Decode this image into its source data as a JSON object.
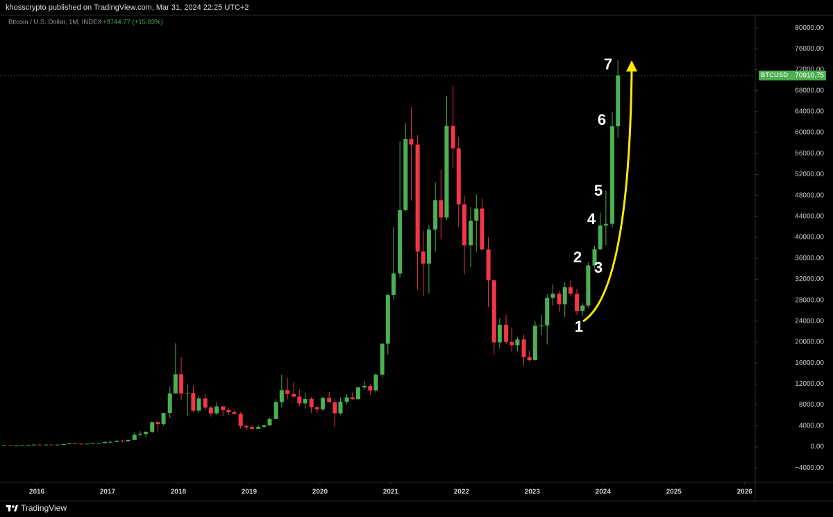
{
  "header": {
    "text": "khosscrypto published on TradingView.com, Mar 31, 2024 22:25 UTC+2"
  },
  "footer": {
    "brand": "TradingView"
  },
  "chart_data": {
    "type": "candlestick",
    "title": "Bitcoin / U.S. Dollar, 1M, INDEX",
    "change_label": "+9744.77 (+15.93%)",
    "symbol": "BTCUSD",
    "up_color": "#4caf50",
    "down_color": "#f23645",
    "annotations": [
      "1",
      "2",
      "3",
      "4",
      "5",
      "6",
      "7"
    ],
    "xlim": [
      2015.48,
      2026.15
    ],
    "xticks": [
      2016,
      2017,
      2018,
      2019,
      2020,
      2021,
      2022,
      2023,
      2024,
      2025,
      2026
    ],
    "ylim": [
      -6760,
      82400
    ],
    "yticks": [
      {
        "value": -4000,
        "label": "−4000.00"
      },
      {
        "value": 0,
        "label": "0.00"
      },
      {
        "value": 4000,
        "label": "4000.00"
      },
      {
        "value": 8000,
        "label": "8000.00"
      },
      {
        "value": 12000,
        "label": "12000.00"
      },
      {
        "value": 16000,
        "label": "16000.00"
      },
      {
        "value": 20000,
        "label": "20000.00"
      },
      {
        "value": 24000,
        "label": "24000.00"
      },
      {
        "value": 28000,
        "label": "28000.00"
      },
      {
        "value": 32000,
        "label": "32000.00"
      },
      {
        "value": 36000,
        "label": "36000.00"
      },
      {
        "value": 40000,
        "label": "40000.00"
      },
      {
        "value": 44000,
        "label": "44000.00"
      },
      {
        "value": 48000,
        "label": "48000.00"
      },
      {
        "value": 52000,
        "label": "52000.00"
      },
      {
        "value": 56000,
        "label": "56000.00"
      },
      {
        "value": 60000,
        "label": "60000.00"
      },
      {
        "value": 64000,
        "label": "64000.00"
      },
      {
        "value": 68000,
        "label": "68000.00"
      },
      {
        "value": 72000,
        "label": "72000.00"
      },
      {
        "value": 76000,
        "label": "76000.00"
      },
      {
        "value": 80000,
        "label": "80000.00"
      }
    ],
    "x": [
      2015.54,
      2015.63,
      2015.71,
      2015.79,
      2015.88,
      2015.96,
      2016.04,
      2016.13,
      2016.21,
      2016.29,
      2016.38,
      2016.46,
      2016.54,
      2016.63,
      2016.71,
      2016.79,
      2016.88,
      2016.96,
      2017.04,
      2017.13,
      2017.21,
      2017.29,
      2017.38,
      2017.46,
      2017.54,
      2017.63,
      2017.71,
      2017.79,
      2017.88,
      2017.96,
      2018.04,
      2018.13,
      2018.21,
      2018.29,
      2018.38,
      2018.46,
      2018.54,
      2018.63,
      2018.71,
      2018.79,
      2018.88,
      2018.96,
      2019.04,
      2019.13,
      2019.21,
      2019.29,
      2019.38,
      2019.46,
      2019.54,
      2019.63,
      2019.71,
      2019.79,
      2019.88,
      2019.96,
      2020.04,
      2020.13,
      2020.21,
      2020.29,
      2020.38,
      2020.46,
      2020.54,
      2020.63,
      2020.71,
      2020.79,
      2020.88,
      2020.96,
      2021.04,
      2021.13,
      2021.21,
      2021.29,
      2021.38,
      2021.46,
      2021.54,
      2021.63,
      2021.71,
      2021.79,
      2021.88,
      2021.96,
      2022.04,
      2022.13,
      2022.21,
      2022.29,
      2022.38,
      2022.46,
      2022.54,
      2022.63,
      2022.71,
      2022.79,
      2022.88,
      2022.96,
      2023.04,
      2023.13,
      2023.21,
      2023.29,
      2023.38,
      2023.46,
      2023.54,
      2023.63,
      2023.71,
      2023.79,
      2023.88,
      2023.96,
      2024.04,
      2024.13,
      2024.21
    ],
    "open": [
      263,
      284,
      230,
      236,
      314,
      378,
      430,
      368,
      437,
      416,
      448,
      531,
      673,
      624,
      574,
      609,
      700,
      742,
      964,
      970,
      1190,
      1080,
      1350,
      2300,
      2480,
      2870,
      4730,
      4340,
      6470,
      10200,
      13860,
      10200,
      10300,
      6930,
      9240,
      7500,
      6390,
      7730,
      7030,
      6630,
      6320,
      4000,
      3740,
      3460,
      3820,
      4100,
      5320,
      8560,
      10820,
      10080,
      9600,
      8300,
      9150,
      7560,
      7190,
      9350,
      8540,
      6420,
      8630,
      9450,
      9140,
      11350,
      11650,
      10780,
      13800,
      19700,
      28990,
      33110,
      45200,
      58800,
      57700,
      37300,
      35000,
      41500,
      47100,
      43800,
      61300,
      57000,
      46300,
      38500,
      43200,
      45500,
      37700,
      31800,
      19950,
      23300,
      20050,
      19420,
      20500,
      17160,
      16550,
      23130,
      23150,
      28480,
      29250,
      27220,
      30480,
      29230,
      25940,
      26970,
      34650,
      37720,
      42280,
      42580,
      61200
    ],
    "high": [
      315,
      285,
      245,
      330,
      500,
      470,
      460,
      445,
      440,
      470,
      550,
      780,
      700,
      625,
      620,
      720,
      755,
      980,
      1150,
      1210,
      1350,
      1360,
      2760,
      3000,
      2950,
      4760,
      5000,
      6470,
      11500,
      19800,
      17200,
      11800,
      11700,
      9770,
      9990,
      7780,
      8500,
      7760,
      7400,
      7000,
      6600,
      4300,
      4100,
      4200,
      4140,
      5600,
      9100,
      13800,
      13200,
      12330,
      10900,
      10350,
      9500,
      7750,
      9580,
      10500,
      9190,
      9480,
      10080,
      10400,
      11450,
      12470,
      12100,
      14100,
      19800,
      29300,
      41950,
      58350,
      61800,
      64900,
      59500,
      41300,
      42400,
      50500,
      52900,
      67000,
      69000,
      59100,
      47990,
      45800,
      48200,
      47450,
      40000,
      31950,
      24600,
      25200,
      22800,
      21000,
      21480,
      18400,
      23950,
      25250,
      29200,
      31000,
      29850,
      31400,
      31800,
      30200,
      27500,
      35200,
      38400,
      44700,
      48970,
      64000,
      73800
    ],
    "low": [
      255,
      200,
      225,
      236,
      300,
      345,
      355,
      365,
      405,
      415,
      435,
      520,
      600,
      470,
      565,
      605,
      690,
      740,
      750,
      930,
      890,
      1060,
      1350,
      2100,
      1830,
      2700,
      2950,
      4100,
      5500,
      10400,
      9000,
      6000,
      6600,
      6450,
      7060,
      5760,
      6070,
      5880,
      6100,
      6200,
      3500,
      3150,
      3350,
      3400,
      3720,
      4040,
      5300,
      7500,
      9080,
      9350,
      7750,
      7300,
      6520,
      6430,
      6870,
      8450,
      3850,
      6150,
      8110,
      8900,
      8950,
      10980,
      9880,
      10400,
      13200,
      17600,
      28130,
      32300,
      45000,
      47000,
      30000,
      28800,
      29300,
      37300,
      39600,
      43300,
      53250,
      42000,
      32900,
      34300,
      37200,
      37600,
      26700,
      17600,
      18800,
      19600,
      18150,
      18200,
      15500,
      16300,
      16500,
      21350,
      19550,
      26950,
      25800,
      24800,
      28850,
      25200,
      24900,
      26550,
      34100,
      37600,
      38500,
      41900,
      59000
    ],
    "close": [
      284,
      230,
      236,
      314,
      378,
      430,
      368,
      437,
      416,
      448,
      531,
      673,
      624,
      574,
      609,
      700,
      742,
      964,
      970,
      1190,
      1080,
      1350,
      2300,
      2480,
      2870,
      4730,
      4340,
      6470,
      10200,
      13860,
      10200,
      10300,
      6930,
      9240,
      7500,
      6390,
      7730,
      7030,
      6630,
      6320,
      4000,
      3740,
      3460,
      3820,
      4100,
      5320,
      8560,
      10820,
      10080,
      9600,
      8300,
      9150,
      7560,
      7190,
      9350,
      8540,
      6420,
      8630,
      9450,
      9140,
      11350,
      11650,
      10780,
      13800,
      19700,
      28990,
      33110,
      45200,
      58800,
      57700,
      37300,
      35000,
      41500,
      47100,
      43800,
      61300,
      57000,
      46300,
      38500,
      43200,
      45500,
      37700,
      31800,
      19950,
      23300,
      20050,
      19420,
      20500,
      17160,
      16550,
      23130,
      23150,
      28480,
      29250,
      27220,
      30480,
      29230,
      25940,
      26970,
      34650,
      37720,
      42280,
      42580,
      61200,
      70910.75
    ]
  }
}
